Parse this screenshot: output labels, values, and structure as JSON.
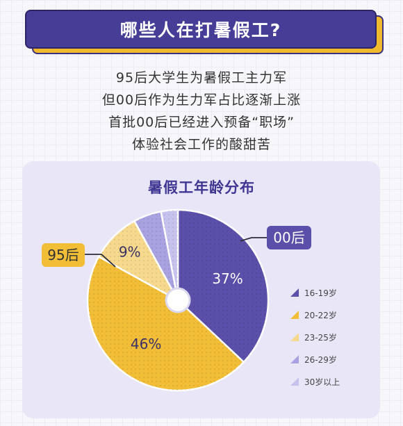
{
  "header": {
    "title": "哪些人在打暑假工?"
  },
  "intro": {
    "lines": [
      "95后大学生为暑假工主力军",
      "但00后作为生力军占比逐渐上涨",
      "首批00后已经进入预备“职场”",
      "体验社会工作的酸甜苦"
    ]
  },
  "chart_data": {
    "type": "pie",
    "title": "暑假工年龄分布",
    "donut": true,
    "categories": [
      "16-19岁",
      "20-22岁",
      "23-25岁",
      "26-29岁",
      "30岁以上"
    ],
    "values": [
      37,
      46,
      9,
      5,
      3
    ],
    "data_labels": [
      "37%",
      "46%",
      "9%",
      "",
      ""
    ],
    "colors": [
      "#5a50a9",
      "#f2bd37",
      "#f6d98d",
      "#a8a3e0",
      "#c6c2ee"
    ],
    "callouts": [
      {
        "text": "00后",
        "slice": 0,
        "color": "#5a50a9"
      },
      {
        "text": "95后",
        "slice": 1,
        "color": "#f2bd37"
      }
    ],
    "legend_position": "right"
  }
}
